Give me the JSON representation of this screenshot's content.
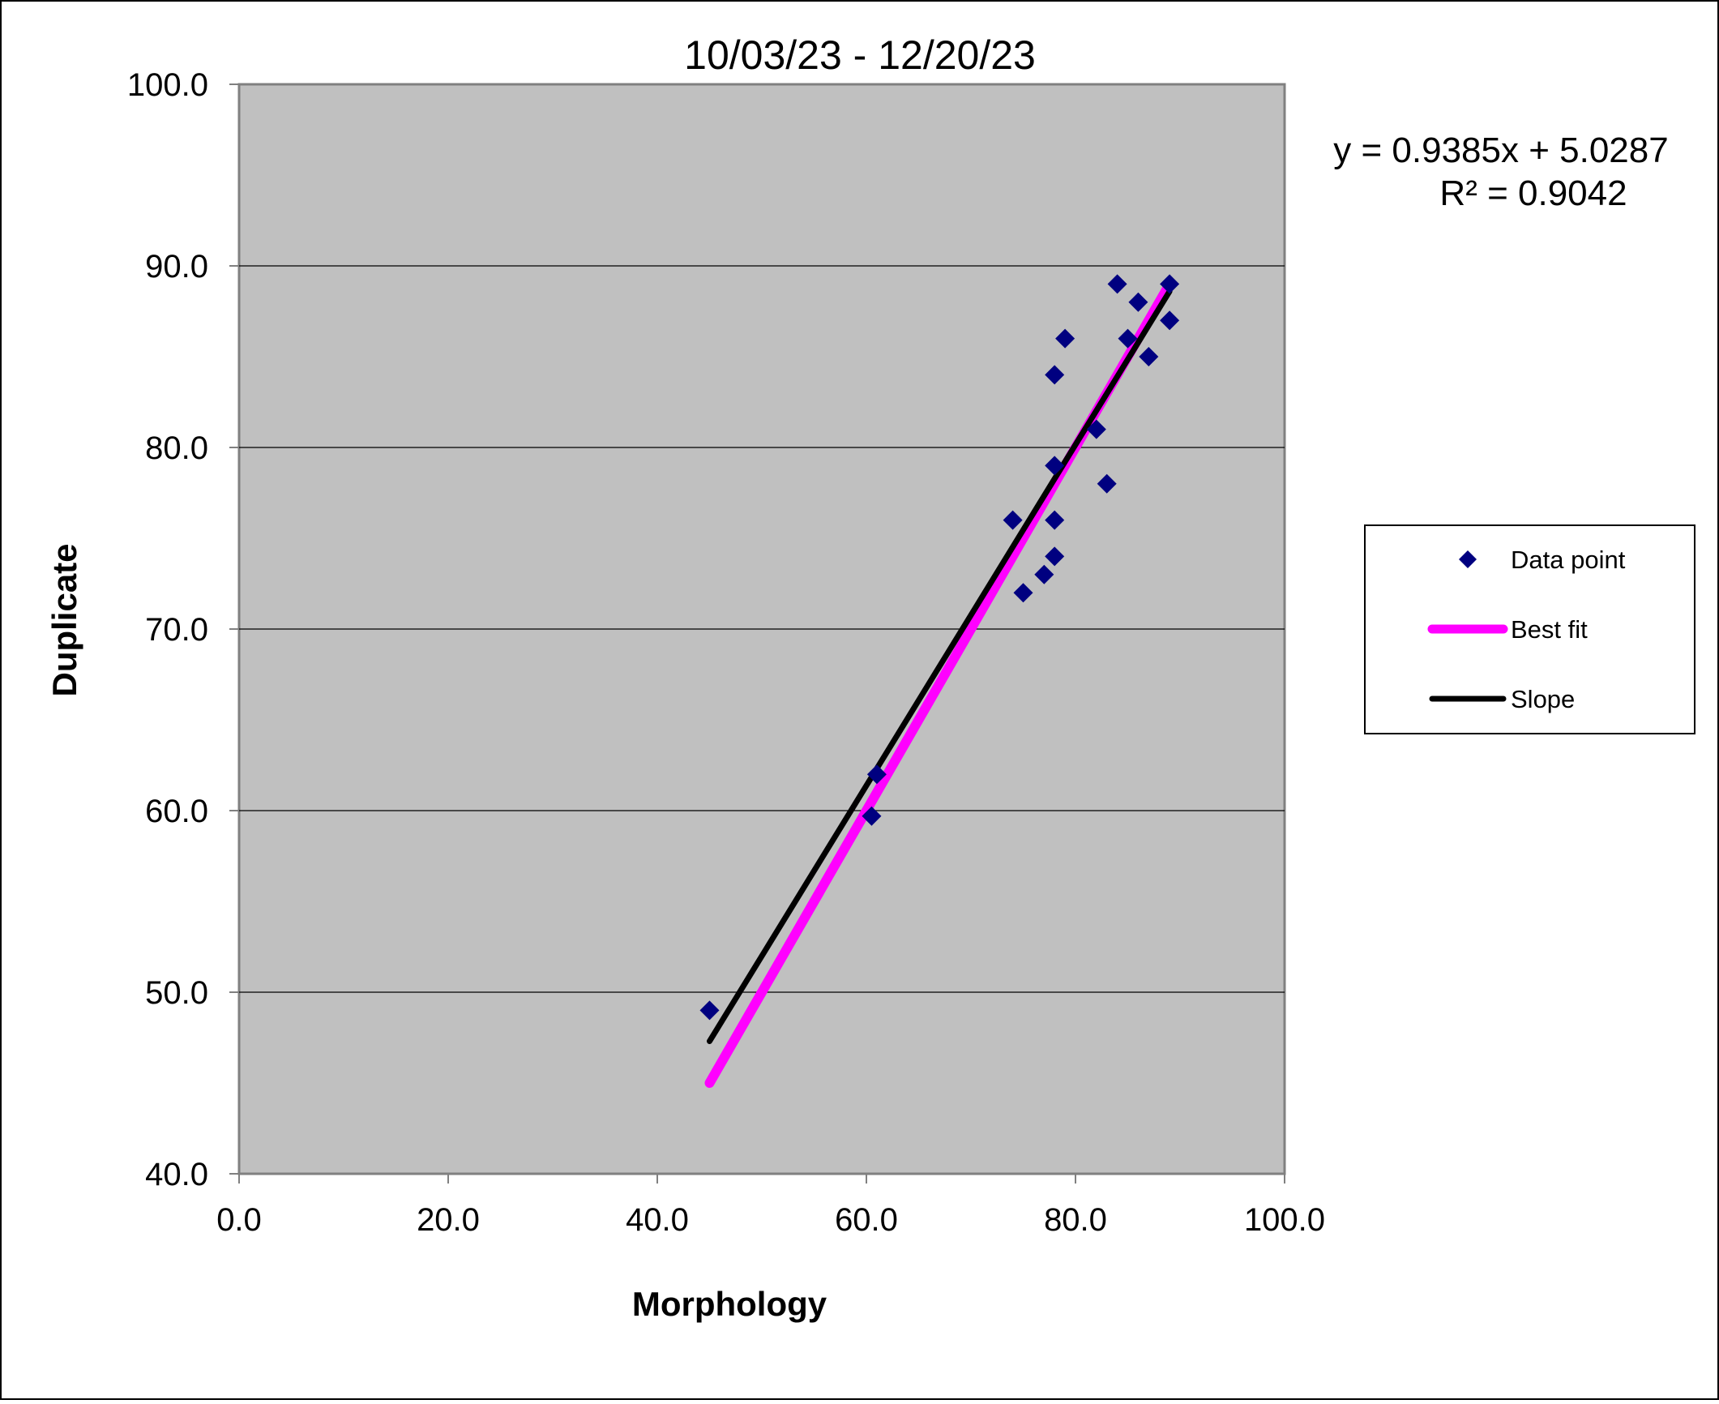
{
  "chart_data": {
    "type": "scatter",
    "title": "10/03/23 - 12/20/23",
    "xlabel": "Morphology",
    "ylabel": "Duplicate",
    "xlim": [
      0,
      100
    ],
    "ylim": [
      40,
      100
    ],
    "x_ticks": [
      "0.0",
      "20.0",
      "40.0",
      "60.0",
      "80.0",
      "100.0"
    ],
    "y_ticks": [
      "40.0",
      "50.0",
      "60.0",
      "70.0",
      "80.0",
      "90.0",
      "100.0"
    ],
    "grid": "horizontal",
    "plot_background": "#c0c0c0",
    "legend_position": "right",
    "equation": "y = 0.9385x + 5.0287",
    "r_squared": "R² = 0.9042",
    "series": [
      {
        "name": "Data point",
        "kind": "points",
        "color": "#000080",
        "marker": "diamond",
        "points": [
          {
            "x": 45,
            "y": 49
          },
          {
            "x": 60.5,
            "y": 59.7
          },
          {
            "x": 61,
            "y": 62
          },
          {
            "x": 74,
            "y": 76
          },
          {
            "x": 75,
            "y": 72
          },
          {
            "x": 77,
            "y": 73
          },
          {
            "x": 78,
            "y": 74
          },
          {
            "x": 78,
            "y": 76
          },
          {
            "x": 78,
            "y": 79
          },
          {
            "x": 78,
            "y": 84
          },
          {
            "x": 79,
            "y": 86
          },
          {
            "x": 82,
            "y": 81
          },
          {
            "x": 83,
            "y": 78
          },
          {
            "x": 84,
            "y": 89
          },
          {
            "x": 85,
            "y": 86
          },
          {
            "x": 86,
            "y": 88
          },
          {
            "x": 87,
            "y": 85
          },
          {
            "x": 89,
            "y": 89
          },
          {
            "x": 89,
            "y": 87
          }
        ]
      },
      {
        "name": "Best fit",
        "kind": "line",
        "color": "#ff00ff",
        "points": [
          {
            "x": 45,
            "y": 45
          },
          {
            "x": 89,
            "y": 89
          }
        ]
      },
      {
        "name": "Slope",
        "kind": "line",
        "color": "#000000",
        "points": [
          {
            "x": 45,
            "y": 47.3
          },
          {
            "x": 89,
            "y": 88.6
          }
        ]
      }
    ]
  }
}
